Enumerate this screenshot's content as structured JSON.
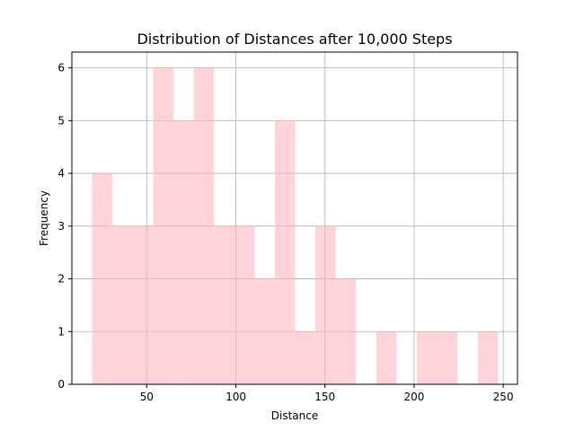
{
  "chart_data": {
    "type": "bar",
    "title": "Distribution of Distances after 10,000 Steps",
    "xlabel": "Distance",
    "ylabel": "Frequency",
    "xlim": [
      8,
      258
    ],
    "ylim": [
      0,
      6.3
    ],
    "xticks": [
      50,
      100,
      150,
      200,
      250
    ],
    "yticks": [
      0,
      1,
      2,
      3,
      4,
      5,
      6
    ],
    "grid": true,
    "bar_color": "#FFB6C1",
    "bar_opacity": 0.6,
    "bins": [
      {
        "x0": 19.4,
        "x1": 30.8,
        "count": 4
      },
      {
        "x0": 30.8,
        "x1": 42.2,
        "count": 3
      },
      {
        "x0": 42.2,
        "x1": 53.6,
        "count": 3
      },
      {
        "x0": 53.6,
        "x1": 65.0,
        "count": 6
      },
      {
        "x0": 65.0,
        "x1": 76.3,
        "count": 5
      },
      {
        "x0": 76.3,
        "x1": 87.7,
        "count": 6
      },
      {
        "x0": 87.7,
        "x1": 99.1,
        "count": 3
      },
      {
        "x0": 99.1,
        "x1": 110.5,
        "count": 3
      },
      {
        "x0": 110.5,
        "x1": 121.9,
        "count": 2
      },
      {
        "x0": 121.9,
        "x1": 133.2,
        "count": 5
      },
      {
        "x0": 133.2,
        "x1": 144.6,
        "count": 1
      },
      {
        "x0": 144.6,
        "x1": 156.0,
        "count": 3
      },
      {
        "x0": 156.0,
        "x1": 167.4,
        "count": 2
      },
      {
        "x0": 167.4,
        "x1": 178.8,
        "count": 0
      },
      {
        "x0": 178.8,
        "x1": 190.1,
        "count": 1
      },
      {
        "x0": 190.1,
        "x1": 201.5,
        "count": 0
      },
      {
        "x0": 201.5,
        "x1": 212.9,
        "count": 1
      },
      {
        "x0": 212.9,
        "x1": 224.3,
        "count": 1
      },
      {
        "x0": 224.3,
        "x1": 235.7,
        "count": 0
      },
      {
        "x0": 235.7,
        "x1": 247.0,
        "count": 1
      }
    ]
  }
}
